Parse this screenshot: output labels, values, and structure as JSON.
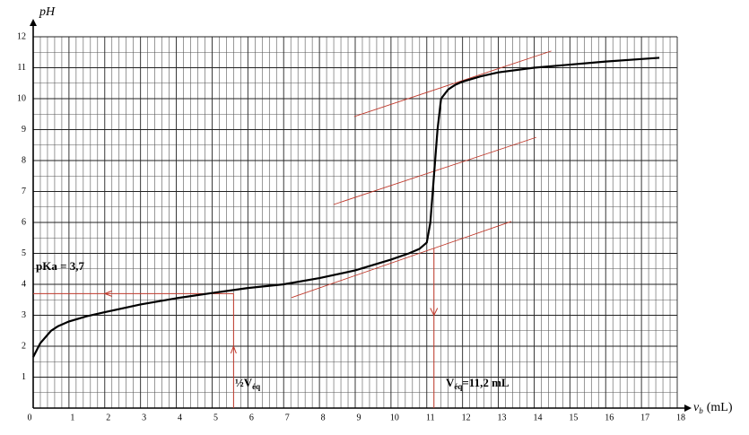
{
  "chart_data": {
    "type": "line",
    "y_label": "pH",
    "x_label_main": "v",
    "x_label_sub": "b",
    "x_label_unit": "(mL)",
    "x": [
      0,
      0.2,
      0.5,
      0.7,
      1,
      1.5,
      2,
      3,
      4,
      5,
      6,
      7,
      8,
      9,
      10,
      10.5,
      10.8,
      11,
      11.1,
      11.2,
      11.3,
      11.4,
      11.6,
      11.8,
      12,
      12.5,
      13,
      14,
      15,
      16,
      17,
      17.5
    ],
    "series": [
      {
        "color": "#000000",
        "values": [
          1.65,
          2.1,
          2.5,
          2.65,
          2.8,
          2.97,
          3.1,
          3.35,
          3.55,
          3.72,
          3.88,
          4.0,
          4.2,
          4.45,
          4.8,
          5.0,
          5.15,
          5.35,
          6.0,
          7.5,
          9.0,
          10.0,
          10.3,
          10.45,
          10.55,
          10.72,
          10.85,
          11.0,
          11.1,
          11.2,
          11.28,
          11.32
        ]
      }
    ],
    "tangents": {
      "color": "#c0392b",
      "lines": [
        {
          "x": [
            8.97,
            14.48
          ],
          "y": [
            9.42,
            11.54
          ]
        },
        {
          "x": [
            8.4,
            14.06
          ],
          "y": [
            6.58,
            8.75
          ]
        },
        {
          "x": [
            7.22,
            13.36
          ],
          "y": [
            3.57,
            6.03
          ]
        }
      ]
    },
    "construction": {
      "pKa": 3.7,
      "half_veq": 5.6,
      "veq": 11.2,
      "color": "#c0392b",
      "pKa_label": "pKa = 3,7",
      "half_label_main": "½V",
      "half_label_sub": "éq",
      "veq_label_main": "V",
      "veq_label_sub": "éq",
      "veq_label_rest": "=11,2 mL"
    },
    "xlim": [
      0,
      18
    ],
    "ylim": [
      0,
      12
    ],
    "xticks": [
      0,
      1,
      2,
      3,
      4,
      5,
      6,
      7,
      8,
      9,
      10,
      11,
      12,
      13,
      14,
      15,
      16,
      17,
      18
    ],
    "yticks": [
      1,
      2,
      3,
      4,
      5,
      6,
      7,
      8,
      9,
      10,
      11,
      12
    ],
    "grid": true
  }
}
